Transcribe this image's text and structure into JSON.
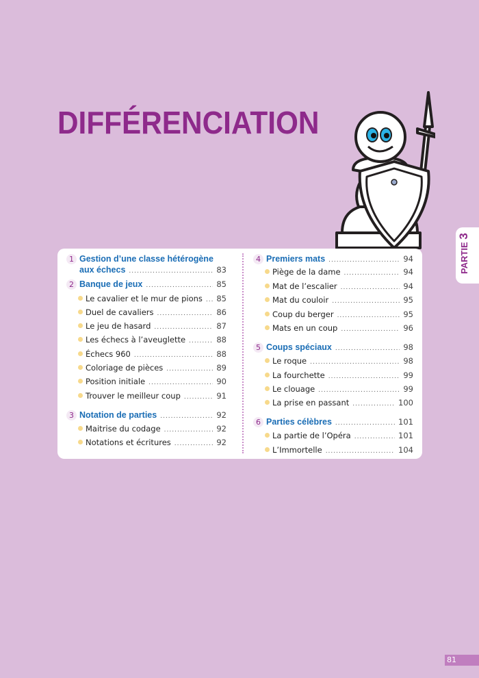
{
  "title": "DIFFÉRENCIATION",
  "side_tab": {
    "label": "PARTIE",
    "number": "3"
  },
  "page_number": "81",
  "colors": {
    "background": "#dbbcdb",
    "title": "#8e2a8b",
    "section": "#1a6db5",
    "bullet": "#f7d98b"
  },
  "toc": {
    "sections": [
      {
        "num": "1",
        "title_line1": "Gestion d’une classe hétérogène",
        "title_line2": "aux échecs",
        "page": "83",
        "items": []
      },
      {
        "num": "2",
        "title": "Banque de jeux",
        "page": "85",
        "items": [
          {
            "label": "Le cavalier et le mur de pions",
            "page": "85"
          },
          {
            "label": "Duel de cavaliers",
            "page": "86"
          },
          {
            "label": "Le jeu de hasard",
            "page": "87"
          },
          {
            "label": "Les échecs à l’aveuglette",
            "page": "88"
          },
          {
            "label": "Échecs 960",
            "page": "88"
          },
          {
            "label": "Coloriage de pièces",
            "page": "89"
          },
          {
            "label": "Position initiale",
            "page": "90"
          },
          {
            "label": "Trouver le meilleur coup",
            "page": "91"
          }
        ]
      },
      {
        "num": "3",
        "title": "Notation de parties",
        "page": "92",
        "items": [
          {
            "label": "Maitrise du codage",
            "page": "92"
          },
          {
            "label": "Notations et écritures",
            "page": "92"
          }
        ]
      },
      {
        "num": "4",
        "title": "Premiers mats",
        "page": "94",
        "items": [
          {
            "label": "Piège de la dame",
            "page": "94"
          },
          {
            "label": "Mat de l’escalier",
            "page": "94"
          },
          {
            "label": "Mat du couloir",
            "page": "95"
          },
          {
            "label": "Coup du berger",
            "page": "95"
          },
          {
            "label": "Mats en un coup",
            "page": "96"
          }
        ]
      },
      {
        "num": "5",
        "title": "Coups spéciaux",
        "page": "98",
        "items": [
          {
            "label": "Le roque",
            "page": "98"
          },
          {
            "label": "La fourchette",
            "page": "99"
          },
          {
            "label": "Le clouage",
            "page": "99"
          },
          {
            "label": "La prise en passant",
            "page": "100"
          }
        ]
      },
      {
        "num": "6",
        "title": "Parties célèbres",
        "page": "101",
        "items": [
          {
            "label": "La partie de l’Opéra",
            "page": "101"
          },
          {
            "label": "L’Immortelle",
            "page": "104"
          }
        ]
      }
    ]
  }
}
